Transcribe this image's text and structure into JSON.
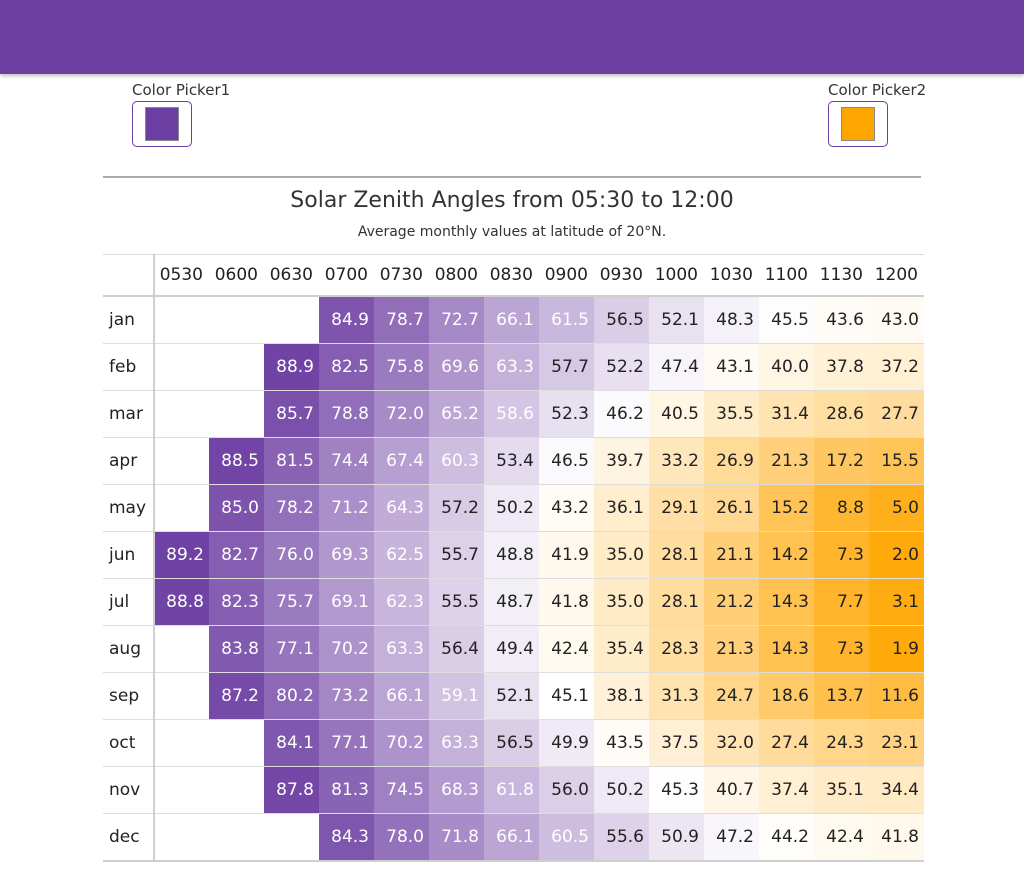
{
  "pickers": [
    {
      "label": "Color Picker1",
      "color": "#6d3ea2"
    },
    {
      "label": "Color Picker2",
      "color": "#ffa500"
    }
  ],
  "chart_data": {
    "type": "heatmap",
    "title": "Solar Zenith Angles from 05:30 to 12:00",
    "subtitle": "Average monthly values at latitude of 20°N.",
    "columns": [
      "0530",
      "0600",
      "0630",
      "0700",
      "0730",
      "0800",
      "0830",
      "0900",
      "0930",
      "1000",
      "1030",
      "1100",
      "1130",
      "1200"
    ],
    "rows": [
      "jan",
      "feb",
      "mar",
      "apr",
      "may",
      "jun",
      "jul",
      "aug",
      "sep",
      "oct",
      "nov",
      "dec"
    ],
    "values": [
      [
        null,
        null,
        null,
        84.9,
        78.7,
        72.7,
        66.1,
        61.5,
        56.5,
        52.1,
        48.3,
        45.5,
        43.6,
        43.0
      ],
      [
        null,
        null,
        88.9,
        82.5,
        75.8,
        69.6,
        63.3,
        57.7,
        52.2,
        47.4,
        43.1,
        40.0,
        37.8,
        37.2
      ],
      [
        null,
        null,
        85.7,
        78.8,
        72.0,
        65.2,
        58.6,
        52.3,
        46.2,
        40.5,
        35.5,
        31.4,
        28.6,
        27.7
      ],
      [
        null,
        88.5,
        81.5,
        74.4,
        67.4,
        60.3,
        53.4,
        46.5,
        39.7,
        33.2,
        26.9,
        21.3,
        17.2,
        15.5
      ],
      [
        null,
        85.0,
        78.2,
        71.2,
        64.3,
        57.2,
        50.2,
        43.2,
        36.1,
        29.1,
        26.1,
        15.2,
        8.8,
        5.0
      ],
      [
        89.2,
        82.7,
        76.0,
        69.3,
        62.5,
        55.7,
        48.8,
        41.9,
        35.0,
        28.1,
        21.1,
        14.2,
        7.3,
        2.0
      ],
      [
        88.8,
        82.3,
        75.7,
        69.1,
        62.3,
        55.5,
        48.7,
        41.8,
        35.0,
        28.1,
        21.2,
        14.3,
        7.7,
        3.1
      ],
      [
        null,
        83.8,
        77.1,
        70.2,
        63.3,
        56.4,
        49.4,
        42.4,
        35.4,
        28.3,
        21.3,
        14.3,
        7.3,
        1.9
      ],
      [
        null,
        87.2,
        80.2,
        73.2,
        66.1,
        59.1,
        52.1,
        45.1,
        38.1,
        31.3,
        24.7,
        18.6,
        13.7,
        11.6
      ],
      [
        null,
        null,
        84.1,
        77.1,
        70.2,
        63.3,
        56.5,
        49.9,
        43.5,
        37.5,
        32.0,
        27.4,
        24.3,
        23.1
      ],
      [
        null,
        null,
        87.8,
        81.3,
        74.5,
        68.3,
        61.8,
        56.0,
        50.2,
        45.3,
        40.7,
        37.4,
        35.1,
        34.4
      ],
      [
        null,
        null,
        null,
        84.3,
        78.0,
        71.8,
        66.1,
        60.5,
        55.6,
        50.9,
        47.2,
        44.2,
        42.4,
        41.8
      ]
    ],
    "color_high": "#6d3ea2",
    "color_low": "#ffa500",
    "color_mid": "#ffffff",
    "value_range": [
      0,
      90
    ]
  }
}
